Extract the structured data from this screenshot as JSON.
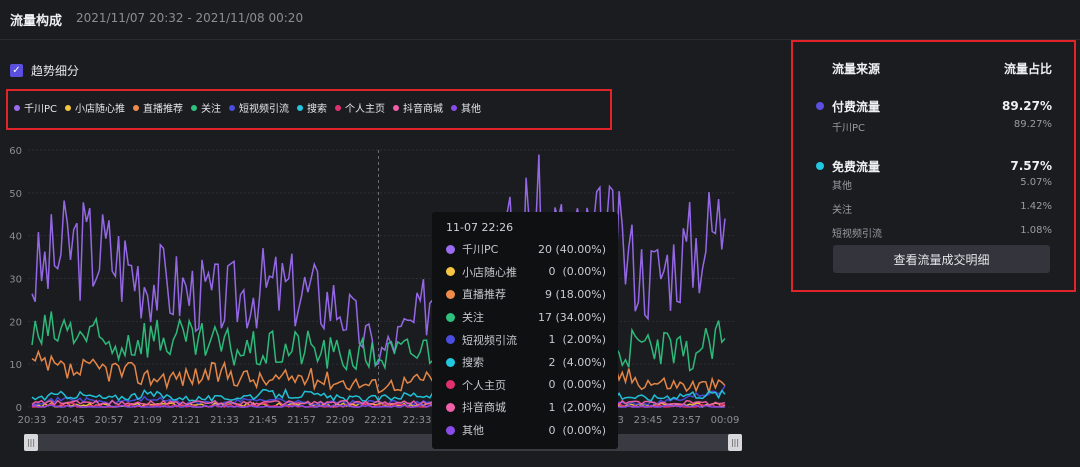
{
  "header": {
    "title": "流量构成",
    "range": "2021/11/07 20:32 - 2021/11/08 00:20"
  },
  "trend": {
    "checkbox_mark": "✓",
    "label": "趋势细分",
    "checked": true
  },
  "slider": {
    "left_handle": "|||",
    "right_handle": "|||"
  },
  "chart_data": {
    "type": "line",
    "title": "",
    "xlabel": "",
    "ylabel": "",
    "ylim": [
      0,
      60
    ],
    "yticks": [
      "0",
      "10",
      "20",
      "30",
      "40",
      "50",
      "60"
    ],
    "x": [
      "20:33",
      "20:45",
      "20:57",
      "21:09",
      "21:21",
      "21:33",
      "21:45",
      "21:57",
      "22:09",
      "22:21",
      "22:33",
      "22:45",
      "22:57",
      "23:09",
      "23:21",
      "23:33",
      "23:45",
      "23:57",
      "00:09"
    ],
    "grid": true,
    "legend": "top-left",
    "series": [
      {
        "name": "千川PC",
        "color": "#9b6cf0",
        "values": [
          30,
          38,
          36,
          30,
          27,
          25,
          28,
          27,
          24,
          12,
          20,
          38,
          34,
          45,
          37,
          40,
          30,
          36,
          44
        ]
      },
      {
        "name": "小店随心推",
        "color": "#f5c542",
        "values": [
          0.5,
          0.5,
          0.5,
          0.5,
          0.5,
          0.5,
          0.5,
          0.5,
          0.5,
          0.5,
          0.5,
          0.5,
          0.5,
          0.5,
          0.5,
          0.5,
          0.5,
          0.5,
          0.5
        ]
      },
      {
        "name": "直播推荐",
        "color": "#f08c4a",
        "values": [
          10,
          8,
          9,
          7,
          7,
          8,
          6,
          7,
          6,
          5,
          6,
          9,
          8,
          8,
          7,
          8,
          6,
          5,
          5
        ]
      },
      {
        "name": "关注",
        "color": "#2ec27e",
        "values": [
          16,
          18,
          14,
          17,
          15,
          14,
          13,
          14,
          12,
          12,
          13,
          17,
          15,
          16,
          14,
          13,
          14,
          12,
          16
        ]
      },
      {
        "name": "短视频引流",
        "color": "#4b4ce0",
        "values": [
          1,
          2,
          1,
          2,
          1,
          1,
          2,
          1,
          1,
          1,
          1,
          1,
          2,
          1,
          2,
          1,
          1,
          2,
          5
        ]
      },
      {
        "name": "搜索",
        "color": "#22c8e0",
        "values": [
          2,
          3,
          2,
          3,
          2,
          2,
          3,
          3,
          2,
          2,
          3,
          2,
          3,
          2,
          2,
          3,
          2,
          3,
          3
        ]
      },
      {
        "name": "个人主页",
        "color": "#e0306e",
        "values": [
          0,
          0.5,
          0,
          0.5,
          0,
          0,
          0.5,
          0,
          0,
          0.5,
          0,
          0,
          0.5,
          0,
          0,
          0.5,
          0,
          0,
          0.5
        ]
      },
      {
        "name": "抖音商城",
        "color": "#f060a8",
        "values": [
          1,
          1,
          1,
          1,
          1,
          1,
          1,
          1,
          1,
          1,
          1,
          1,
          1,
          1,
          1,
          1,
          1,
          1,
          1
        ]
      },
      {
        "name": "其他",
        "color": "#8a4ce8",
        "values": [
          0,
          0,
          0,
          0,
          0,
          0,
          0,
          0,
          0,
          0,
          0,
          0,
          0,
          0,
          0,
          0,
          0,
          0,
          0
        ]
      }
    ],
    "hover_x": "22:21"
  },
  "tooltip": {
    "time": "11-07 22:26",
    "rows": [
      {
        "name": "千川PC",
        "value": "20 (40.00%)",
        "color": "#9b6cf0"
      },
      {
        "name": "小店随心推",
        "value": "0  (0.00%)",
        "color": "#f5c542"
      },
      {
        "name": "直播推荐",
        "value": "9 (18.00%)",
        "color": "#f08c4a"
      },
      {
        "name": "关注",
        "value": "17 (34.00%)",
        "color": "#2ec27e"
      },
      {
        "name": "短视频引流",
        "value": "1  (2.00%)",
        "color": "#4b4ce0"
      },
      {
        "name": "搜索",
        "value": "2  (4.00%)",
        "color": "#22c8e0"
      },
      {
        "name": "个人主页",
        "value": "0  (0.00%)",
        "color": "#e0306e"
      },
      {
        "name": "抖音商城",
        "value": "1  (2.00%)",
        "color": "#f060a8"
      },
      {
        "name": "其他",
        "value": "0  (0.00%)",
        "color": "#8a4ce8"
      }
    ]
  },
  "panel": {
    "col_source": "流量来源",
    "col_ratio": "流量占比",
    "paid": {
      "name": "付费流量",
      "value": "89.27%",
      "color": "#5b4fe0",
      "items": [
        {
          "name": "千川PC",
          "value": "89.27%"
        }
      ]
    },
    "free": {
      "name": "免费流量",
      "value": "7.57%",
      "color": "#22c8e0",
      "items": [
        {
          "name": "其他",
          "value": "5.07%"
        },
        {
          "name": "关注",
          "value": "1.42%"
        },
        {
          "name": "短视频引流",
          "value": "1.08%"
        }
      ]
    },
    "button": "查看流量成交明细"
  }
}
